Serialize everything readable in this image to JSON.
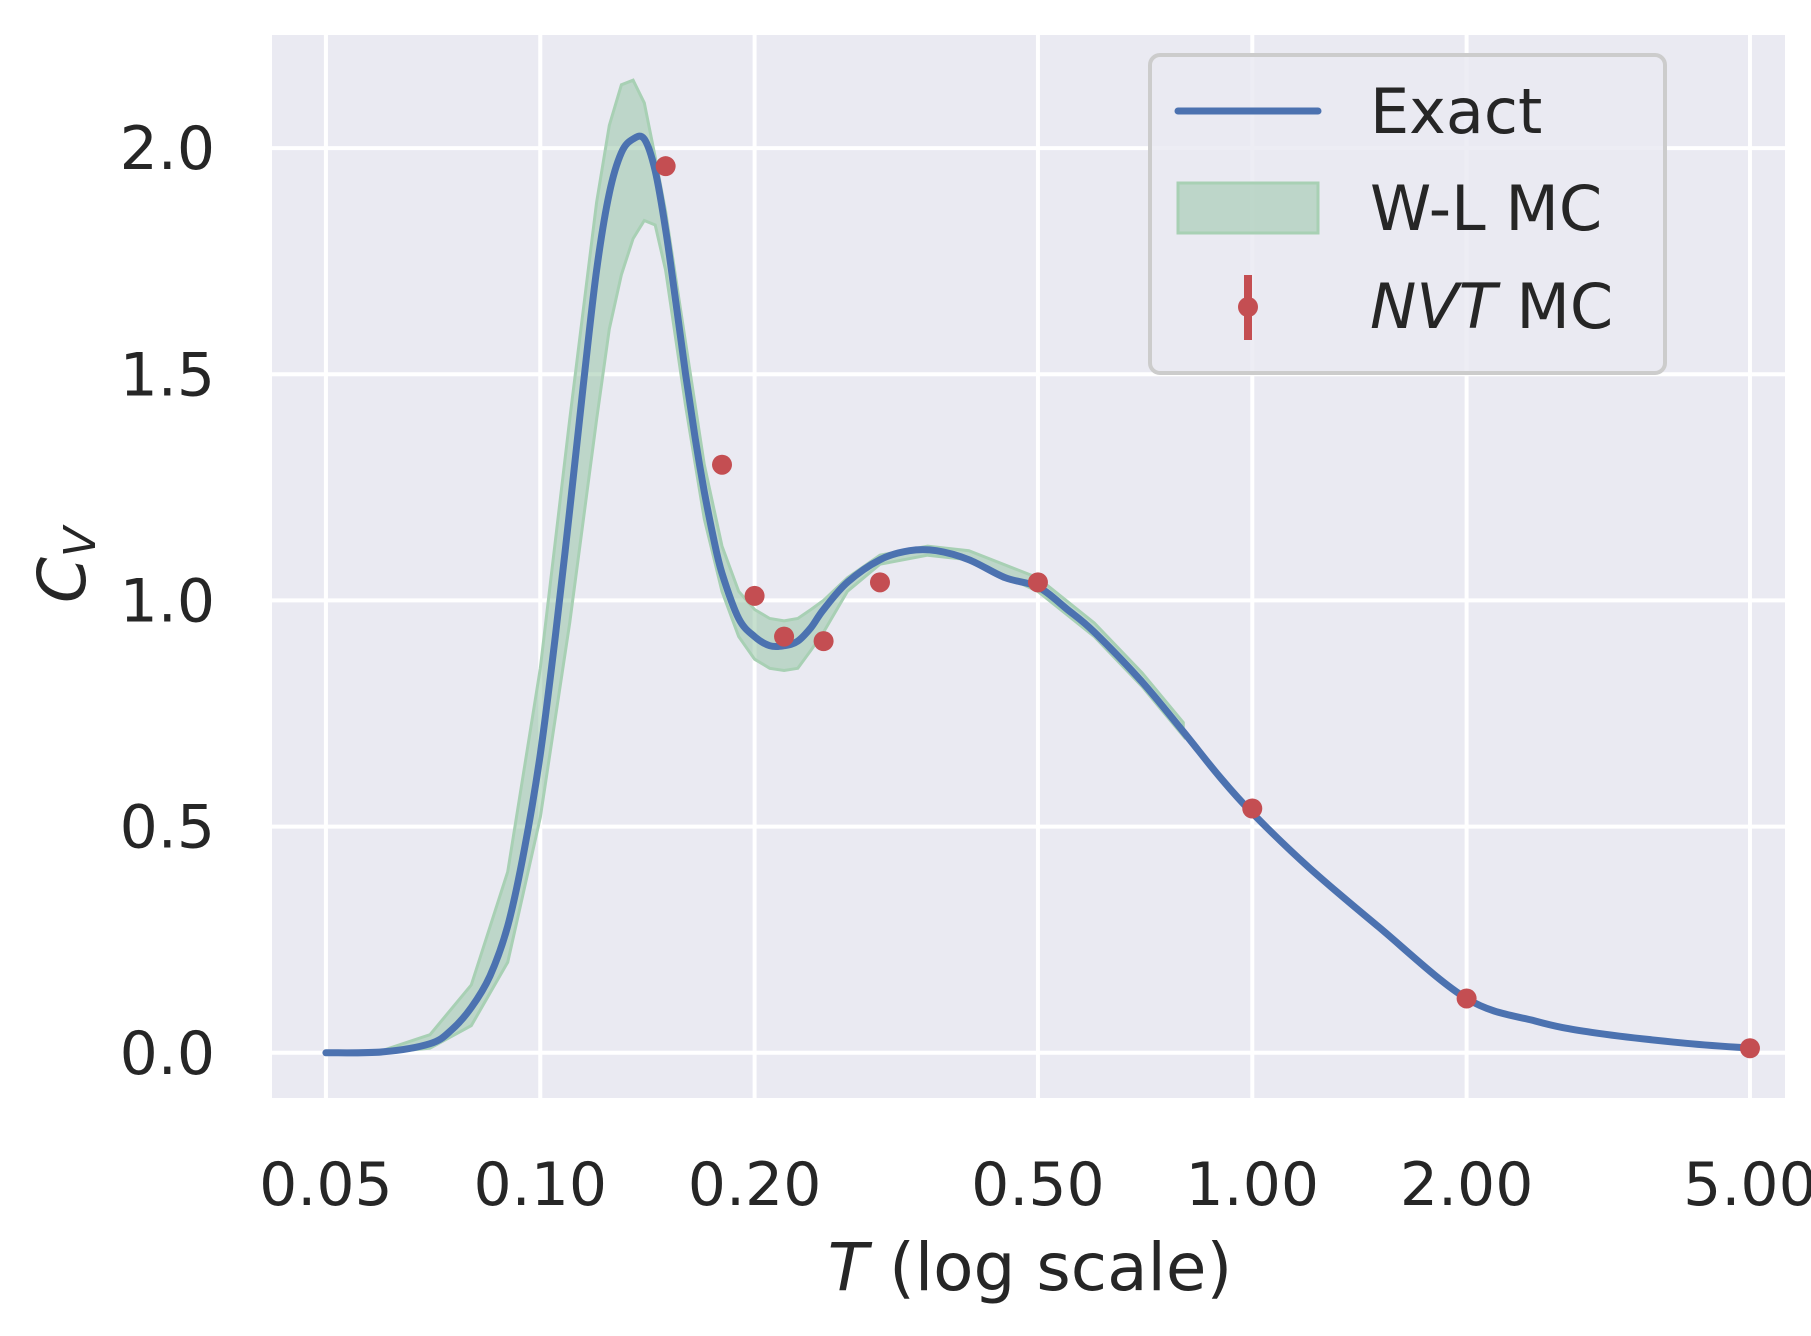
{
  "chart_data": {
    "type": "line",
    "xscale": "log",
    "xlim": [
      0.042,
      5.6
    ],
    "ylim": [
      -0.1,
      2.25
    ],
    "grid": true,
    "legend_placement": "top-right",
    "xticks": [
      0.05,
      0.1,
      0.2,
      0.5,
      1.0,
      2.0,
      5.0
    ],
    "xtick_labels": [
      "0.05",
      "0.10",
      "0.20",
      "0.50",
      "1.00",
      "2.00",
      "5.00"
    ],
    "yticks": [
      0.0,
      0.5,
      1.0,
      1.5,
      2.0
    ],
    "ytick_labels": [
      "0.0",
      "0.5",
      "1.0",
      "1.5",
      "2.0"
    ],
    "xlabel_italic": "T",
    "xlabel_rest": " (log scale)",
    "ylabel_main": "C",
    "ylabel_sub": "V",
    "legend": {
      "exact": "Exact",
      "wl": "W-L MC",
      "nvt_italic": "NVT",
      "nvt_rest": " MC"
    },
    "colors": {
      "exact": "#4c72b0",
      "wl_fill": "#8fc1a0",
      "wl_edge": "#a8d0b4",
      "nvt": "#c44e52",
      "plot_bg": "#eaeaf2",
      "grid": "#ffffff"
    },
    "series": [
      {
        "name": "Exact",
        "x": [
          0.05,
          0.06,
          0.07,
          0.075,
          0.08,
          0.085,
          0.09,
          0.095,
          0.1,
          0.105,
          0.11,
          0.115,
          0.12,
          0.125,
          0.13,
          0.135,
          0.14,
          0.145,
          0.15,
          0.155,
          0.16,
          0.165,
          0.17,
          0.175,
          0.18,
          0.19,
          0.2,
          0.21,
          0.22,
          0.23,
          0.24,
          0.25,
          0.27,
          0.3,
          0.33,
          0.36,
          0.4,
          0.45,
          0.5,
          0.55,
          0.6,
          0.7,
          0.8,
          0.9,
          1.0,
          1.2,
          1.5,
          2.0,
          2.5,
          3.0,
          4.0,
          5.0
        ],
        "y": [
          0.0,
          0.002,
          0.02,
          0.05,
          0.1,
          0.17,
          0.28,
          0.45,
          0.66,
          0.92,
          1.2,
          1.48,
          1.73,
          1.9,
          1.99,
          2.02,
          2.02,
          1.95,
          1.82,
          1.66,
          1.5,
          1.36,
          1.24,
          1.14,
          1.06,
          0.96,
          0.92,
          0.9,
          0.9,
          0.91,
          0.94,
          0.98,
          1.04,
          1.09,
          1.11,
          1.11,
          1.09,
          1.05,
          1.03,
          0.98,
          0.93,
          0.82,
          0.71,
          0.61,
          0.53,
          0.41,
          0.28,
          0.12,
          0.07,
          0.045,
          0.022,
          0.01
        ]
      },
      {
        "name": "W-L MC",
        "x": [
          0.06,
          0.07,
          0.08,
          0.09,
          0.1,
          0.11,
          0.12,
          0.125,
          0.13,
          0.135,
          0.14,
          0.145,
          0.15,
          0.16,
          0.17,
          0.18,
          0.19,
          0.2,
          0.21,
          0.22,
          0.23,
          0.24,
          0.25,
          0.27,
          0.3,
          0.35,
          0.4,
          0.5,
          0.6,
          0.7,
          0.8
        ],
        "y_lower": [
          0.0,
          0.01,
          0.06,
          0.2,
          0.52,
          0.95,
          1.4,
          1.6,
          1.72,
          1.8,
          1.84,
          1.83,
          1.73,
          1.43,
          1.18,
          1.02,
          0.92,
          0.87,
          0.85,
          0.845,
          0.85,
          0.89,
          0.93,
          1.02,
          1.08,
          1.1,
          1.09,
          1.02,
          0.92,
          0.81,
          0.7
        ],
        "y_upper": [
          0.005,
          0.04,
          0.15,
          0.4,
          0.85,
          1.4,
          1.88,
          2.05,
          2.14,
          2.15,
          2.1,
          1.98,
          1.86,
          1.57,
          1.3,
          1.12,
          1.02,
          0.98,
          0.96,
          0.955,
          0.96,
          0.98,
          1.0,
          1.05,
          1.1,
          1.12,
          1.11,
          1.05,
          0.95,
          0.84,
          0.73
        ]
      },
      {
        "name": "NVT MC",
        "x": [
          0.15,
          0.18,
          0.2,
          0.22,
          0.25,
          0.3,
          0.5,
          1.0,
          2.0,
          5.0
        ],
        "y": [
          1.96,
          1.3,
          1.01,
          0.92,
          0.91,
          1.04,
          1.04,
          0.54,
          0.12,
          0.01
        ]
      }
    ]
  }
}
